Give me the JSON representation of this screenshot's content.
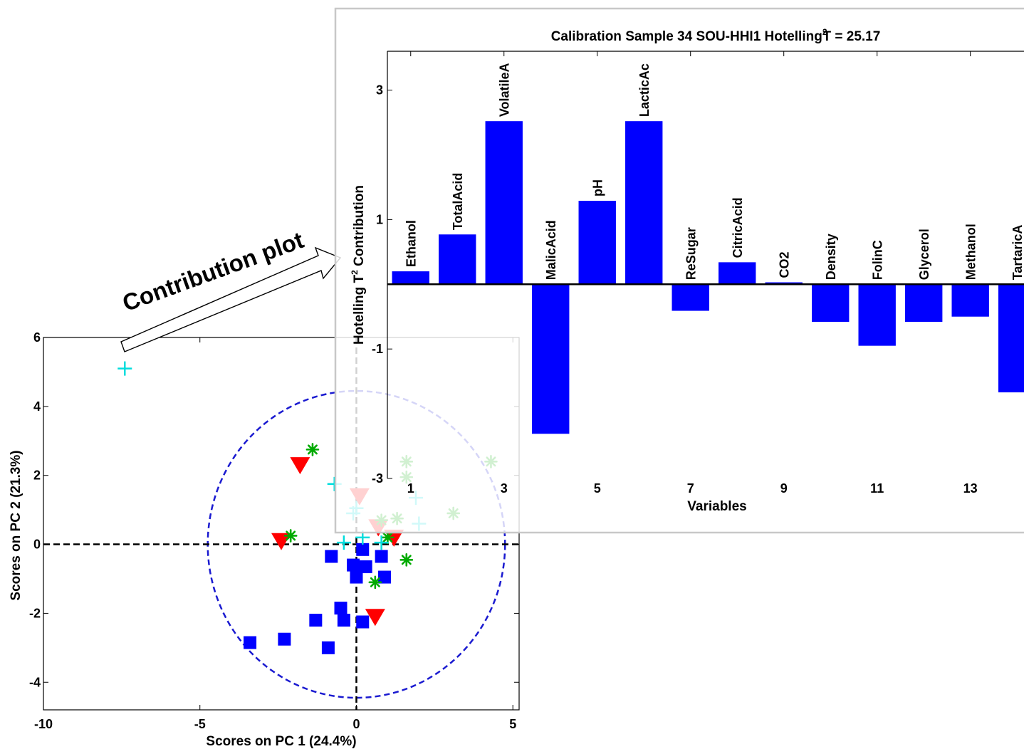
{
  "annotation": {
    "text": "Contribution plot"
  },
  "chart_data": [
    {
      "type": "scatter",
      "xlabel": "Scores on PC 1 (24.4%)",
      "ylabel": "Scores on PC 2 (21.3%)",
      "xlim": [
        -10,
        5.2
      ],
      "ylim": [
        -4.8,
        6
      ],
      "xticks": [
        -10,
        -5,
        0,
        5
      ],
      "yticks": [
        -4,
        -2,
        0,
        2,
        4,
        6
      ],
      "reference_lines": {
        "x": 0,
        "y": 0
      },
      "confidence_ellipse": {
        "cx": 0,
        "cy": 0,
        "rx": 4.75,
        "ry": 4.45
      },
      "series": [
        {
          "marker": "square",
          "color": "#0000ff",
          "x": [
            -0.8,
            0.2,
            0.8,
            0.0,
            0.3,
            -0.1,
            0.9,
            -1.3,
            -0.5,
            -0.4,
            0.2,
            -3.4,
            -2.3,
            -0.9
          ],
          "y": [
            -0.35,
            -0.15,
            -0.35,
            -0.95,
            -0.65,
            -0.6,
            -0.95,
            -2.2,
            -1.85,
            -2.2,
            -2.25,
            -2.85,
            -2.75,
            -3.0
          ]
        },
        {
          "marker": "triangle-down",
          "color": "#ff0000",
          "x": [
            -1.8,
            0.1,
            0.7,
            1.2,
            -2.4,
            0.6
          ],
          "y": [
            2.3,
            1.4,
            0.5,
            0.2,
            0.1,
            -2.1
          ]
        },
        {
          "marker": "asterisk",
          "color": "#00aa00",
          "x": [
            -1.4,
            1.6,
            1.6,
            4.3,
            0.8,
            1.3,
            3.1,
            -2.1,
            1.0,
            1.6,
            0.6
          ],
          "y": [
            2.75,
            2.4,
            1.95,
            2.4,
            0.7,
            0.75,
            0.9,
            0.25,
            0.2,
            -0.45,
            -1.1
          ]
        },
        {
          "marker": "plus",
          "color": "#00dddd",
          "x": [
            -7.4,
            -0.7,
            0.0,
            -0.1,
            1.9,
            2.0,
            0.2,
            0.8,
            -0.4
          ],
          "y": [
            5.1,
            1.75,
            1.05,
            0.9,
            1.35,
            0.6,
            0.2,
            0.05,
            0.05
          ]
        }
      ]
    },
    {
      "type": "bar",
      "title": "Calibration Sample 34 SOU-HHI1 Hotelling T² = 25.17",
      "title_parts": {
        "main": "Calibration Sample 34 SOU-HHI1 Hotelling",
        "sup": "2",
        "tail": "T = 25.17"
      },
      "xlabel": "Variables",
      "ylabel": "Hotelling T² Contribution",
      "ylabel_parts": {
        "main": "Hotelling T",
        "sup": "2",
        "tail": " Contribution"
      },
      "xlim": [
        0.5,
        14.15
      ],
      "ylim": [
        -3,
        3.6
      ],
      "xticks": [
        1,
        3,
        5,
        7,
        9,
        11,
        13
      ],
      "yticks": [
        -3,
        -1,
        1,
        3
      ],
      "categories": [
        "Ethanol",
        "TotalAcid",
        "VolatileA",
        "MalicAcid",
        "pH",
        "LacticAc",
        "ReSugar",
        "CitricAcid",
        "CO2",
        "Density",
        "FolinC",
        "Glycerol",
        "Methanol",
        "TartaricA"
      ],
      "values": [
        0.2,
        0.77,
        2.52,
        -2.31,
        1.29,
        2.52,
        -0.41,
        0.34,
        0.03,
        -0.58,
        -0.95,
        -0.58,
        -0.5,
        -1.67
      ],
      "bar_color": "#0000ff"
    }
  ]
}
